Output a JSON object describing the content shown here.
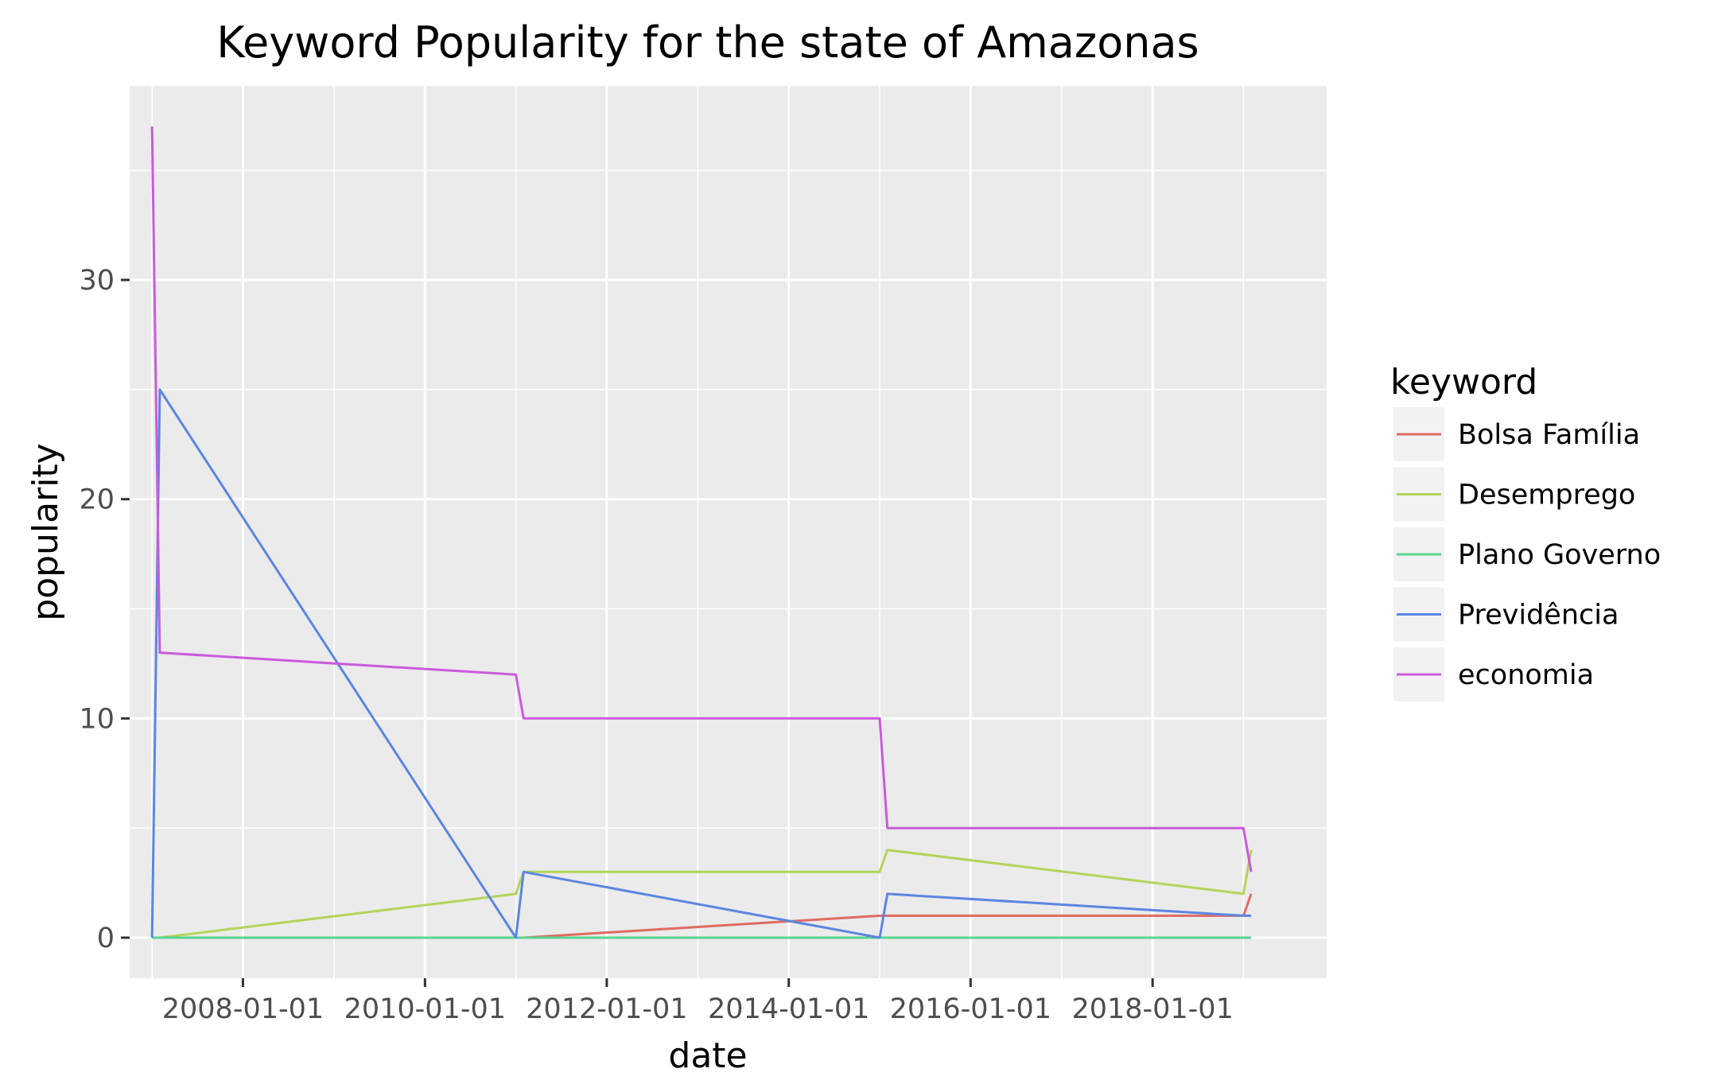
{
  "chart_data": {
    "type": "line",
    "title": "Keyword Popularity for the state of Amazonas",
    "xlabel": "date",
    "ylabel": "popularity",
    "x": [
      "2007-01-01",
      "2007-02-01",
      "2011-01-01",
      "2011-02-01",
      "2015-01-01",
      "2015-02-01",
      "2019-01-01",
      "2019-02-01"
    ],
    "xlim": [
      "2006-10-03",
      "2019-12-01"
    ],
    "ylim": [
      -1.85,
      38.85
    ],
    "xticks": [
      {
        "date": "2008-01-01",
        "label": "2008-01-01"
      },
      {
        "date": "2010-01-01",
        "label": "2010-01-01"
      },
      {
        "date": "2012-01-01",
        "label": "2012-01-01"
      },
      {
        "date": "2014-01-01",
        "label": "2014-01-01"
      },
      {
        "date": "2016-01-01",
        "label": "2016-01-01"
      },
      {
        "date": "2018-01-01",
        "label": "2018-01-01"
      }
    ],
    "xminor": [
      "2007-01-01",
      "2009-01-01",
      "2011-01-01",
      "2013-01-01",
      "2015-01-01",
      "2017-01-01",
      "2019-01-01"
    ],
    "yticks": [
      {
        "value": 0,
        "label": "0"
      },
      {
        "value": 10,
        "label": "10"
      },
      {
        "value": 20,
        "label": "20"
      },
      {
        "value": 30,
        "label": "30"
      }
    ],
    "yminor": [
      5,
      15,
      25,
      35
    ],
    "grid": true,
    "legend_title": "keyword",
    "legend_position": "right",
    "series": [
      {
        "name": "Bolsa Família",
        "color": "#E06B61",
        "values": [
          0,
          0,
          0,
          0,
          1,
          1,
          1,
          2
        ]
      },
      {
        "name": "Desemprego",
        "color": "#B4D35A",
        "values": [
          0,
          0,
          2,
          3,
          3,
          4,
          2,
          4
        ]
      },
      {
        "name": "Plano Governo",
        "color": "#5BD38F",
        "values": [
          0,
          0,
          0,
          0,
          0,
          0,
          0,
          0
        ]
      },
      {
        "name": "Previdência",
        "color": "#5B86E0",
        "values": [
          0,
          25,
          0,
          3,
          0,
          2,
          1,
          1
        ]
      },
      {
        "name": "economia",
        "color": "#C95BDB",
        "values": [
          37,
          13,
          12,
          10,
          10,
          5,
          5,
          3
        ]
      }
    ]
  }
}
